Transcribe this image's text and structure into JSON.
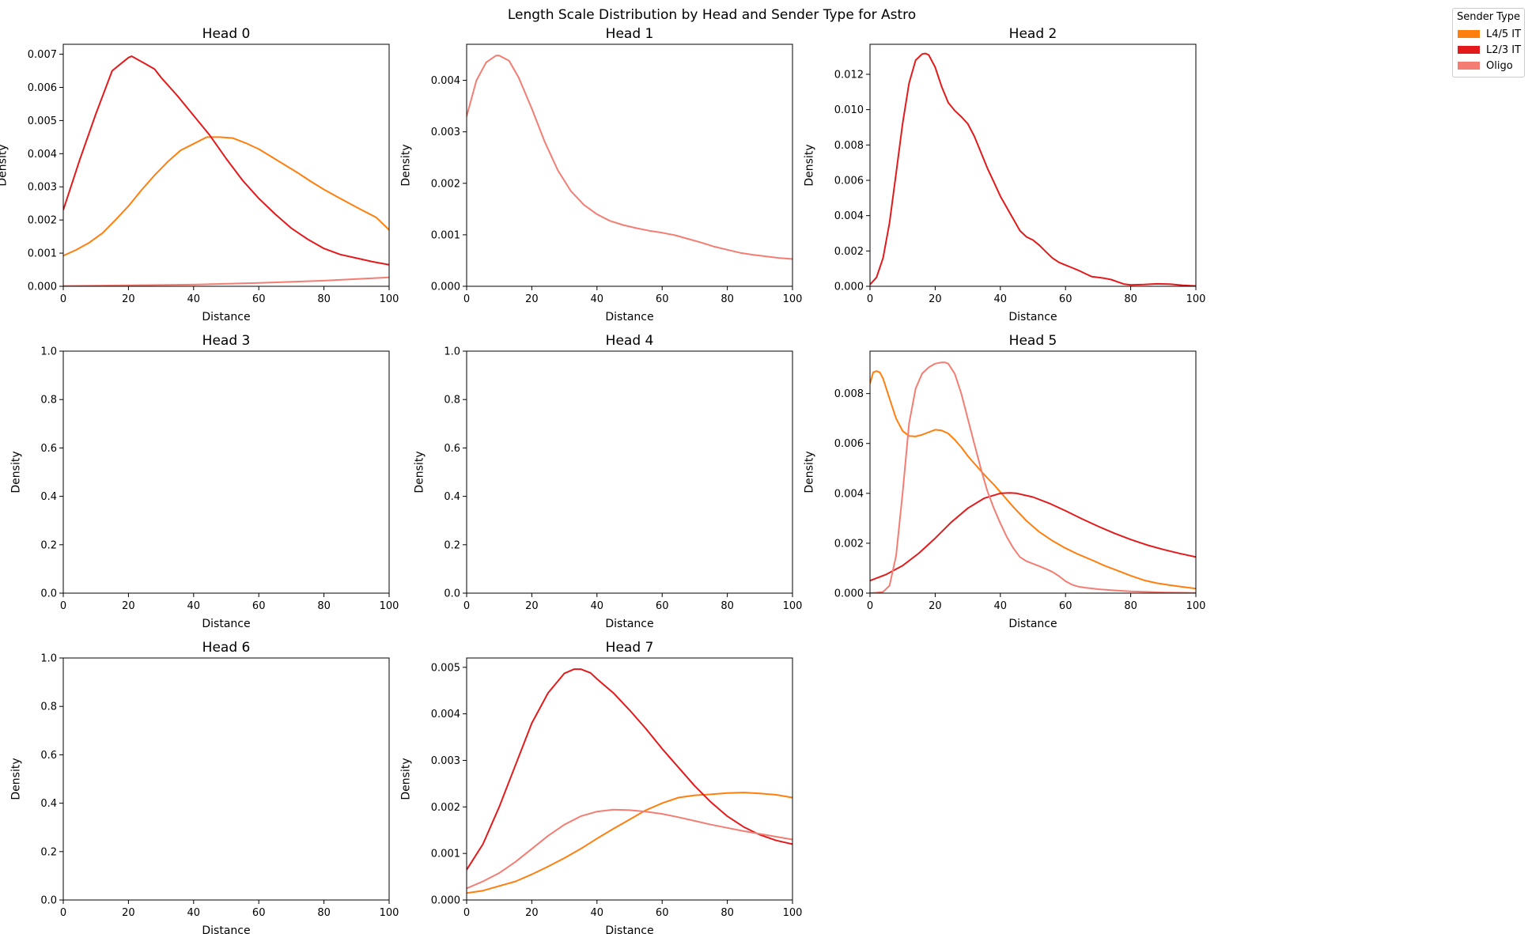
{
  "figure": {
    "title": "Length Scale Distribution by Head and Sender Type for Astro"
  },
  "legend": {
    "title": "Sender Type",
    "items": [
      {
        "label": "L4/5 IT",
        "color": "#ff7f0e"
      },
      {
        "label": "L2/3 IT",
        "color": "#e31a1c"
      },
      {
        "label": "Oligo",
        "color": "#f47d73"
      }
    ]
  },
  "chart_data": [
    {
      "type": "line",
      "title": "Head 0",
      "xlabel": "Distance",
      "ylabel": "Density",
      "xlim": [
        0,
        100
      ],
      "ylim": [
        0,
        0.0073
      ],
      "yticks": [
        "0.000",
        "0.001",
        "0.002",
        "0.003",
        "0.004",
        "0.005",
        "0.006",
        "0.007"
      ],
      "xticks": [
        "0",
        "20",
        "40",
        "60",
        "80",
        "100"
      ],
      "series": [
        {
          "name": "L4/5 IT",
          "color": "#ff7f0e",
          "x": [
            0,
            4,
            8,
            12,
            16,
            20,
            24,
            28,
            32,
            36,
            40,
            44,
            48,
            52,
            56,
            60,
            64,
            68,
            72,
            76,
            80,
            84,
            88,
            92,
            96,
            100
          ],
          "y": [
            0.00092,
            0.0011,
            0.00132,
            0.0016,
            0.002,
            0.00242,
            0.0029,
            0.00335,
            0.00375,
            0.0041,
            0.0043,
            0.0045,
            0.0045,
            0.00447,
            0.00432,
            0.00414,
            0.0039,
            0.00366,
            0.00342,
            0.00316,
            0.00292,
            0.0027,
            0.00249,
            0.00228,
            0.00208,
            0.0017
          ]
        },
        {
          "name": "L2/3 IT",
          "color": "#e31a1c",
          "x": [
            0,
            5,
            10,
            15,
            20,
            21,
            25,
            28,
            30,
            35,
            40,
            45,
            50,
            55,
            60,
            65,
            70,
            75,
            80,
            85,
            90,
            95,
            100
          ],
          "y": [
            0.0023,
            0.0038,
            0.0052,
            0.0065,
            0.0069,
            0.00694,
            0.00672,
            0.00655,
            0.0063,
            0.00575,
            0.00515,
            0.00455,
            0.00385,
            0.0032,
            0.00265,
            0.00218,
            0.00175,
            0.00142,
            0.00114,
            0.00096,
            0.00085,
            0.00074,
            0.00065
          ]
        },
        {
          "name": "Oligo",
          "color": "#f47d73",
          "x": [
            0,
            20,
            40,
            60,
            80,
            100
          ],
          "y": [
            1e-05,
            3e-05,
            5e-05,
            0.0001,
            0.00017,
            0.00027
          ]
        }
      ]
    },
    {
      "type": "line",
      "title": "Head 1",
      "xlabel": "Distance",
      "ylabel": "Density",
      "xlim": [
        0,
        100
      ],
      "ylim": [
        0,
        0.0047
      ],
      "yticks": [
        "0.000",
        "0.001",
        "0.002",
        "0.003",
        "0.004"
      ],
      "xticks": [
        "0",
        "20",
        "40",
        "60",
        "80",
        "100"
      ],
      "series": [
        {
          "name": "Oligo",
          "color": "#f47d73",
          "x": [
            0,
            3,
            6,
            9,
            10,
            13,
            16,
            20,
            24,
            28,
            32,
            36,
            40,
            44,
            48,
            52,
            56,
            60,
            64,
            68,
            72,
            76,
            80,
            84,
            88,
            92,
            96,
            100
          ],
          "y": [
            0.0033,
            0.004,
            0.00435,
            0.00448,
            0.00448,
            0.00438,
            0.00405,
            0.00345,
            0.0028,
            0.00225,
            0.00185,
            0.00158,
            0.0014,
            0.00127,
            0.00119,
            0.00113,
            0.00108,
            0.00104,
            0.00099,
            0.00092,
            0.00085,
            0.00077,
            0.00071,
            0.00065,
            0.00061,
            0.00058,
            0.00055,
            0.00053
          ]
        }
      ]
    },
    {
      "type": "line",
      "title": "Head 2",
      "xlabel": "Distance",
      "ylabel": "Density",
      "xlim": [
        0,
        100
      ],
      "ylim": [
        0,
        0.0137
      ],
      "yticks": [
        "0.000",
        "0.002",
        "0.004",
        "0.006",
        "0.008",
        "0.010",
        "0.012"
      ],
      "xticks": [
        "0",
        "20",
        "40",
        "60",
        "80",
        "100"
      ],
      "series": [
        {
          "name": "L2/3 IT",
          "color": "#e31a1c",
          "x": [
            0,
            2,
            4,
            6,
            8,
            10,
            12,
            14,
            16,
            17,
            18,
            20,
            22,
            24,
            26,
            28,
            30,
            32,
            34,
            36,
            38,
            40,
            42,
            44,
            46,
            48,
            50,
            52,
            54,
            56,
            58,
            60,
            62,
            64,
            66,
            68,
            70,
            72,
            74,
            76,
            78,
            80,
            84,
            88,
            92,
            96,
            100
          ],
          "y": [
            0.0001,
            0.0005,
            0.0016,
            0.0036,
            0.0064,
            0.0092,
            0.0115,
            0.0128,
            0.01315,
            0.01318,
            0.0131,
            0.0124,
            0.0113,
            0.0104,
            0.00995,
            0.0096,
            0.0092,
            0.0085,
            0.0076,
            0.0067,
            0.0059,
            0.0051,
            0.00445,
            0.0038,
            0.00315,
            0.0028,
            0.00262,
            0.00232,
            0.00195,
            0.0016,
            0.00135,
            0.0012,
            0.00105,
            0.0009,
            0.00072,
            0.00055,
            0.0005,
            0.00045,
            0.00038,
            0.00025,
            0.00012,
            8e-05,
            0.0001,
            0.00014,
            0.00012,
            6e-05,
            2e-05
          ]
        }
      ]
    },
    {
      "type": "line",
      "title": "Head 3",
      "xlabel": "Distance",
      "ylabel": "Density",
      "xlim": [
        0,
        100
      ],
      "ylim": [
        0,
        1.0
      ],
      "yticks": [
        "0.0",
        "0.2",
        "0.4",
        "0.6",
        "0.8",
        "1.0"
      ],
      "xticks": [
        "0",
        "20",
        "40",
        "60",
        "80",
        "100"
      ],
      "series": []
    },
    {
      "type": "line",
      "title": "Head 4",
      "xlabel": "Distance",
      "ylabel": "Density",
      "xlim": [
        0,
        100
      ],
      "ylim": [
        0,
        1.0
      ],
      "yticks": [
        "0.0",
        "0.2",
        "0.4",
        "0.6",
        "0.8",
        "1.0"
      ],
      "xticks": [
        "0",
        "20",
        "40",
        "60",
        "80",
        "100"
      ],
      "series": []
    },
    {
      "type": "line",
      "title": "Head 5",
      "xlabel": "Distance",
      "ylabel": "Density",
      "xlim": [
        0,
        100
      ],
      "ylim": [
        0,
        0.0097
      ],
      "yticks": [
        "0.000",
        "0.002",
        "0.004",
        "0.006",
        "0.008"
      ],
      "xticks": [
        "0",
        "20",
        "40",
        "60",
        "80",
        "100"
      ],
      "series": [
        {
          "name": "L4/5 IT",
          "color": "#ff7f0e",
          "x": [
            0,
            1,
            2,
            3,
            4,
            6,
            8,
            10,
            12,
            14,
            16,
            18,
            20,
            22,
            24,
            26,
            28,
            30,
            32,
            34,
            36,
            38,
            40,
            44,
            48,
            52,
            56,
            60,
            64,
            68,
            72,
            76,
            80,
            84,
            88,
            92,
            96,
            100
          ],
          "y": [
            0.0084,
            0.00885,
            0.0089,
            0.00885,
            0.0086,
            0.0078,
            0.007,
            0.0065,
            0.0063,
            0.00628,
            0.00635,
            0.00645,
            0.00655,
            0.00652,
            0.0064,
            0.00615,
            0.00585,
            0.0055,
            0.0052,
            0.0049,
            0.00462,
            0.00435,
            0.00405,
            0.00345,
            0.0029,
            0.00245,
            0.0021,
            0.0018,
            0.00155,
            0.00133,
            0.0011,
            0.0009,
            0.0007,
            0.00052,
            0.0004,
            0.00032,
            0.00025,
            0.00018
          ]
        },
        {
          "name": "L2/3 IT",
          "color": "#e31a1c",
          "x": [
            0,
            5,
            10,
            15,
            20,
            25,
            30,
            35,
            40,
            43,
            45,
            50,
            55,
            60,
            65,
            70,
            75,
            80,
            85,
            90,
            95,
            100
          ],
          "y": [
            0.0005,
            0.00075,
            0.0011,
            0.0016,
            0.0022,
            0.00285,
            0.0034,
            0.0038,
            0.004,
            0.00402,
            0.004,
            0.00385,
            0.0036,
            0.0033,
            0.00298,
            0.00268,
            0.0024,
            0.00215,
            0.00193,
            0.00175,
            0.00159,
            0.00145
          ]
        },
        {
          "name": "Oligo",
          "color": "#f47d73",
          "x": [
            0,
            2,
            4,
            6,
            8,
            10,
            12,
            14,
            16,
            18,
            20,
            22,
            23,
            24,
            26,
            28,
            30,
            32,
            34,
            36,
            38,
            40,
            42,
            44,
            46,
            48,
            50,
            52,
            54,
            56,
            58,
            60,
            62,
            64,
            66,
            68,
            70,
            75,
            80,
            85,
            90,
            95,
            100
          ],
          "y": [
            0.0,
            2e-05,
            5e-05,
            0.0003,
            0.0015,
            0.004,
            0.0068,
            0.0082,
            0.0088,
            0.00905,
            0.0092,
            0.00925,
            0.00925,
            0.0092,
            0.0088,
            0.008,
            0.007,
            0.006,
            0.005,
            0.0041,
            0.0034,
            0.0028,
            0.00225,
            0.0018,
            0.00145,
            0.00128,
            0.00118,
            0.00108,
            0.00097,
            0.00085,
            0.00068,
            0.00048,
            0.00034,
            0.00026,
            0.00022,
            0.00019,
            0.00016,
            0.00011,
            7e-05,
            5e-05,
            3e-05,
            2e-05,
            1e-05
          ]
        }
      ]
    },
    {
      "type": "line",
      "title": "Head 6",
      "xlabel": "Distance",
      "ylabel": "Density",
      "xlim": [
        0,
        100
      ],
      "ylim": [
        0,
        1.0
      ],
      "yticks": [
        "0.0",
        "0.2",
        "0.4",
        "0.6",
        "0.8",
        "1.0"
      ],
      "xticks": [
        "0",
        "20",
        "40",
        "60",
        "80",
        "100"
      ],
      "series": []
    },
    {
      "type": "line",
      "title": "Head 7",
      "xlabel": "Distance",
      "ylabel": "Density",
      "xlim": [
        0,
        100
      ],
      "ylim": [
        0,
        0.0052
      ],
      "yticks": [
        "0.000",
        "0.001",
        "0.002",
        "0.003",
        "0.004",
        "0.005"
      ],
      "xticks": [
        "0",
        "20",
        "40",
        "60",
        "80",
        "100"
      ],
      "series": [
        {
          "name": "L4/5 IT",
          "color": "#ff7f0e",
          "x": [
            0,
            5,
            10,
            15,
            20,
            25,
            30,
            35,
            40,
            45,
            50,
            55,
            60,
            65,
            70,
            75,
            80,
            85,
            90,
            95,
            100
          ],
          "y": [
            0.00015,
            0.0002,
            0.0003,
            0.0004,
            0.00055,
            0.00072,
            0.0009,
            0.0011,
            0.00132,
            0.00153,
            0.00173,
            0.00193,
            0.00208,
            0.0022,
            0.00225,
            0.00227,
            0.0023,
            0.00231,
            0.00229,
            0.00226,
            0.0022
          ]
        },
        {
          "name": "L2/3 IT",
          "color": "#e31a1c",
          "x": [
            0,
            5,
            10,
            15,
            20,
            25,
            30,
            33,
            35,
            38,
            40,
            45,
            50,
            55,
            60,
            65,
            70,
            75,
            80,
            85,
            90,
            95,
            100
          ],
          "y": [
            0.00065,
            0.0012,
            0.002,
            0.0029,
            0.0038,
            0.00445,
            0.00487,
            0.00496,
            0.00496,
            0.00488,
            0.00475,
            0.00445,
            0.00408,
            0.00368,
            0.00325,
            0.00285,
            0.00245,
            0.0021,
            0.0018,
            0.00157,
            0.0014,
            0.00128,
            0.0012
          ]
        },
        {
          "name": "Oligo",
          "color": "#f47d73",
          "x": [
            0,
            5,
            10,
            15,
            20,
            25,
            30,
            35,
            40,
            45,
            50,
            55,
            60,
            65,
            70,
            75,
            80,
            85,
            90,
            95,
            100
          ],
          "y": [
            0.00025,
            0.0004,
            0.00058,
            0.00082,
            0.0011,
            0.00138,
            0.00162,
            0.0018,
            0.0019,
            0.00194,
            0.00193,
            0.0019,
            0.00185,
            0.00178,
            0.0017,
            0.00162,
            0.00155,
            0.00148,
            0.00142,
            0.00136,
            0.0013
          ]
        }
      ]
    }
  ]
}
